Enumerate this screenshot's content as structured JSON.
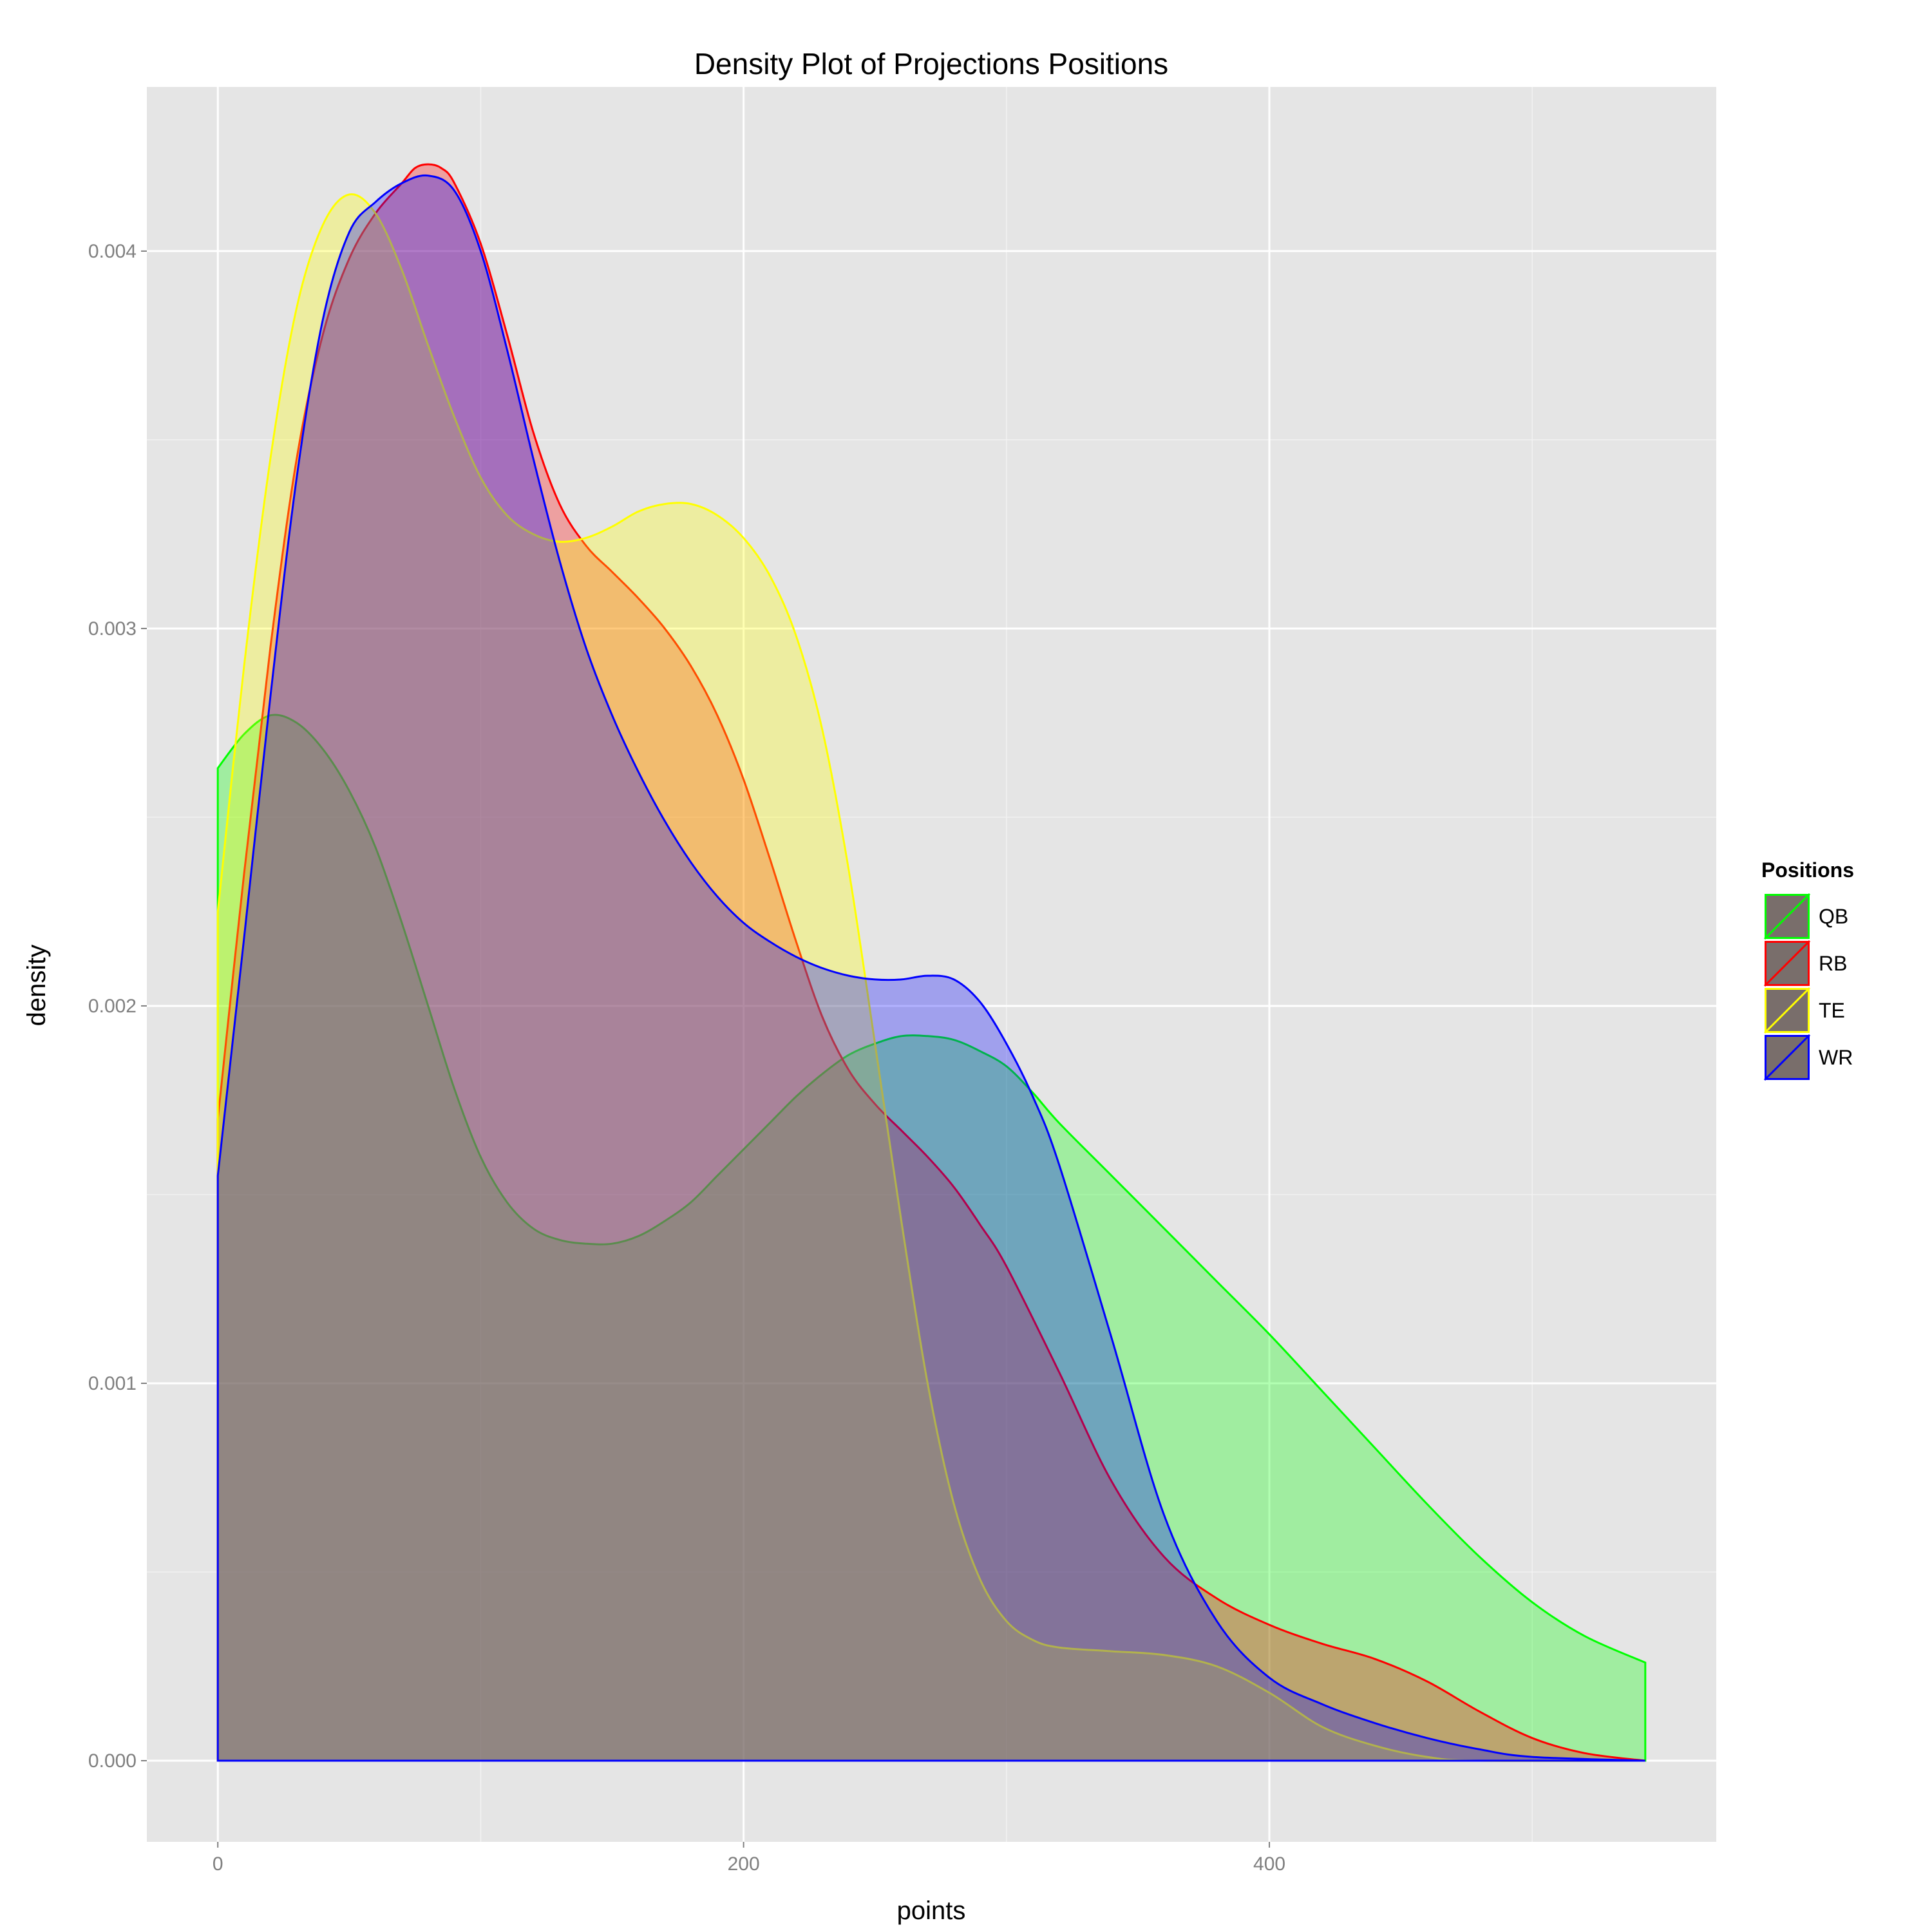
{
  "chart_data": {
    "type": "area",
    "title": "Density Plot of Projections Positions",
    "xlabel": "points",
    "ylabel": "density",
    "xlim": [
      -27,
      570
    ],
    "ylim": [
      -0.000215,
      0.004435
    ],
    "x_ticks": [
      0,
      200,
      400
    ],
    "x_tick_labels": [
      "0",
      "200",
      "400"
    ],
    "y_ticks": [
      0,
      0.001,
      0.002,
      0.003,
      0.004
    ],
    "y_tick_labels": [
      "0.000",
      "0.001",
      "0.002",
      "0.003",
      "0.004"
    ],
    "grid": true,
    "legend": {
      "title": "Positions",
      "placement": "right"
    },
    "series": [
      {
        "name": "QB",
        "color": "#00ff00",
        "fill": "#00ff00",
        "points": [
          [
            0,
            0.00263
          ],
          [
            10,
            0.00272
          ],
          [
            20,
            0.00277
          ],
          [
            30,
            0.00275
          ],
          [
            40,
            0.00268
          ],
          [
            50,
            0.00257
          ],
          [
            60,
            0.00242
          ],
          [
            70,
            0.00222
          ],
          [
            80,
            0.002
          ],
          [
            90,
            0.00178
          ],
          [
            100,
            0.0016
          ],
          [
            110,
            0.00148
          ],
          [
            120,
            0.00141
          ],
          [
            130,
            0.00138
          ],
          [
            140,
            0.00137
          ],
          [
            150,
            0.00137
          ],
          [
            160,
            0.00139
          ],
          [
            170,
            0.00143
          ],
          [
            180,
            0.00148
          ],
          [
            190,
            0.00155
          ],
          [
            200,
            0.00162
          ],
          [
            210,
            0.00169
          ],
          [
            220,
            0.00176
          ],
          [
            230,
            0.00182
          ],
          [
            240,
            0.00187
          ],
          [
            250,
            0.0019
          ],
          [
            260,
            0.00192
          ],
          [
            270,
            0.00192
          ],
          [
            280,
            0.00191
          ],
          [
            290,
            0.00188
          ],
          [
            300,
            0.00184
          ],
          [
            310,
            0.00177
          ],
          [
            320,
            0.00169
          ],
          [
            340,
            0.00155
          ],
          [
            360,
            0.00141
          ],
          [
            380,
            0.00127
          ],
          [
            400,
            0.00113
          ],
          [
            420,
            0.00098
          ],
          [
            440,
            0.00083
          ],
          [
            460,
            0.00068
          ],
          [
            480,
            0.00054
          ],
          [
            500,
            0.00042
          ],
          [
            520,
            0.00033
          ],
          [
            543,
            0.00026
          ]
        ]
      },
      {
        "name": "RB",
        "color": "#ff0000",
        "fill": "#ff0000",
        "points": [
          [
            0,
            0.0017
          ],
          [
            10,
            0.00235
          ],
          [
            20,
            0.00295
          ],
          [
            30,
            0.00345
          ],
          [
            40,
            0.00378
          ],
          [
            50,
            0.00398
          ],
          [
            60,
            0.0041
          ],
          [
            70,
            0.00418
          ],
          [
            75,
            0.00422
          ],
          [
            80,
            0.00423
          ],
          [
            85,
            0.00422
          ],
          [
            90,
            0.00418
          ],
          [
            100,
            0.00402
          ],
          [
            110,
            0.00378
          ],
          [
            120,
            0.00352
          ],
          [
            130,
            0.00333
          ],
          [
            140,
            0.00322
          ],
          [
            150,
            0.00315
          ],
          [
            160,
            0.00308
          ],
          [
            170,
            0.003
          ],
          [
            180,
            0.0029
          ],
          [
            190,
            0.00277
          ],
          [
            200,
            0.0026
          ],
          [
            210,
            0.00239
          ],
          [
            220,
            0.00217
          ],
          [
            230,
            0.00197
          ],
          [
            240,
            0.00183
          ],
          [
            250,
            0.00174
          ],
          [
            260,
            0.00167
          ],
          [
            270,
            0.0016
          ],
          [
            280,
            0.00152
          ],
          [
            290,
            0.00142
          ],
          [
            300,
            0.00131
          ],
          [
            320,
            0.00103
          ],
          [
            340,
            0.00074
          ],
          [
            360,
            0.00054
          ],
          [
            380,
            0.00043
          ],
          [
            400,
            0.00036
          ],
          [
            420,
            0.00031
          ],
          [
            440,
            0.00027
          ],
          [
            460,
            0.00021
          ],
          [
            480,
            0.00013
          ],
          [
            500,
            6e-05
          ],
          [
            520,
            2e-05
          ],
          [
            543,
            0.0
          ]
        ]
      },
      {
        "name": "TE",
        "color": "#ffff00",
        "fill": "#ffff00",
        "points": [
          [
            0,
            0.00225
          ],
          [
            10,
            0.0029
          ],
          [
            20,
            0.00345
          ],
          [
            30,
            0.00385
          ],
          [
            40,
            0.00407
          ],
          [
            50,
            0.00415
          ],
          [
            60,
            0.0041
          ],
          [
            70,
            0.00395
          ],
          [
            80,
            0.00375
          ],
          [
            90,
            0.00356
          ],
          [
            100,
            0.0034
          ],
          [
            110,
            0.0033
          ],
          [
            120,
            0.00325
          ],
          [
            130,
            0.00323
          ],
          [
            140,
            0.00324
          ],
          [
            150,
            0.00327
          ],
          [
            160,
            0.00331
          ],
          [
            170,
            0.00333
          ],
          [
            180,
            0.00333
          ],
          [
            190,
            0.0033
          ],
          [
            200,
            0.00324
          ],
          [
            210,
            0.00314
          ],
          [
            220,
            0.00298
          ],
          [
            230,
            0.00273
          ],
          [
            240,
            0.00236
          ],
          [
            250,
            0.0019
          ],
          [
            260,
            0.00143
          ],
          [
            270,
            0.001
          ],
          [
            280,
            0.00068
          ],
          [
            290,
            0.00048
          ],
          [
            300,
            0.00037
          ],
          [
            310,
            0.00032
          ],
          [
            320,
            0.0003
          ],
          [
            340,
            0.00029
          ],
          [
            360,
            0.00028
          ],
          [
            380,
            0.00025
          ],
          [
            400,
            0.00018
          ],
          [
            420,
            9e-05
          ],
          [
            440,
            4e-05
          ],
          [
            460,
            1e-05
          ],
          [
            480,
            0.0
          ],
          [
            543,
            0.0
          ]
        ]
      },
      {
        "name": "WR",
        "color": "#0000ff",
        "fill": "#0000ff",
        "points": [
          [
            0,
            0.00155
          ],
          [
            10,
            0.00218
          ],
          [
            20,
            0.00282
          ],
          [
            30,
            0.0034
          ],
          [
            40,
            0.00382
          ],
          [
            50,
            0.00405
          ],
          [
            60,
            0.00413
          ],
          [
            70,
            0.00418
          ],
          [
            80,
            0.0042
          ],
          [
            90,
            0.00416
          ],
          [
            100,
            0.004
          ],
          [
            110,
            0.00374
          ],
          [
            120,
            0.00345
          ],
          [
            130,
            0.00318
          ],
          [
            140,
            0.00295
          ],
          [
            150,
            0.00277
          ],
          [
            160,
            0.00262
          ],
          [
            170,
            0.00249
          ],
          [
            180,
            0.00238
          ],
          [
            190,
            0.00229
          ],
          [
            200,
            0.00222
          ],
          [
            210,
            0.00217
          ],
          [
            220,
            0.00213
          ],
          [
            230,
            0.0021
          ],
          [
            240,
            0.00208
          ],
          [
            250,
            0.00207
          ],
          [
            260,
            0.00207
          ],
          [
            270,
            0.00208
          ],
          [
            280,
            0.00207
          ],
          [
            290,
            0.00201
          ],
          [
            300,
            0.0019
          ],
          [
            310,
            0.00176
          ],
          [
            320,
            0.00158
          ],
          [
            340,
            0.00112
          ],
          [
            360,
            0.00065
          ],
          [
            380,
            0.00037
          ],
          [
            400,
            0.00022
          ],
          [
            420,
            0.00015
          ],
          [
            440,
            0.0001
          ],
          [
            460,
            6e-05
          ],
          [
            480,
            3e-05
          ],
          [
            500,
            1e-05
          ],
          [
            543,
            0.0
          ]
        ]
      }
    ]
  }
}
